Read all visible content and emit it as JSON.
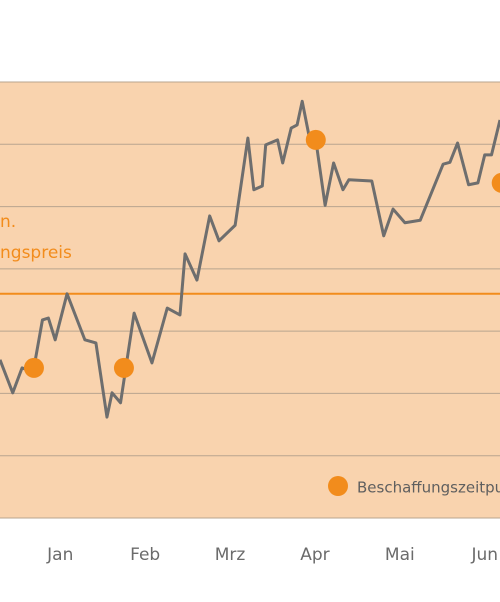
{
  "chart_data": {
    "type": "line",
    "xlim": [
      0.29,
      6.18
    ],
    "ylim": [
      0,
      7
    ],
    "xticks": [
      {
        "value": 1,
        "label": "Jan"
      },
      {
        "value": 2,
        "label": "Feb"
      },
      {
        "value": 3,
        "label": "Mrz"
      },
      {
        "value": 4,
        "label": "Apr"
      },
      {
        "value": 5,
        "label": "Mai"
      },
      {
        "value": 6,
        "label": "Jun"
      }
    ],
    "yticks": [
      0,
      1,
      2,
      3,
      4,
      5,
      6,
      7
    ],
    "grid": true,
    "background": "#f9d3ae",
    "x": [
      0.29,
      0.44,
      0.55,
      0.68,
      0.79,
      0.86,
      0.94,
      1.08,
      1.29,
      1.42,
      1.55,
      1.61,
      1.71,
      1.87,
      2.08,
      2.26,
      2.41,
      2.47,
      2.61,
      2.76,
      2.87,
      3.06,
      3.21,
      3.28,
      3.38,
      3.42,
      3.56,
      3.62,
      3.72,
      3.79,
      3.85,
      3.94,
      4.01,
      4.12,
      4.22,
      4.33,
      4.4,
      4.67,
      4.81,
      4.92,
      5.06,
      5.24,
      5.51,
      5.59,
      5.68,
      5.81,
      5.92,
      6.0,
      6.08,
      6.18
    ],
    "series": [
      {
        "color": "#6e6e6e",
        "values": [
          2.54,
          2.01,
          2.41,
          2.34,
          3.18,
          3.21,
          2.86,
          3.6,
          2.86,
          2.81,
          1.62,
          2.01,
          1.85,
          3.29,
          2.49,
          3.37,
          3.26,
          4.24,
          3.82,
          4.85,
          4.45,
          4.7,
          6.1,
          5.27,
          5.33,
          5.99,
          6.07,
          5.7,
          6.26,
          6.31,
          6.69,
          6.07,
          6.07,
          5.02,
          5.7,
          5.27,
          5.43,
          5.41,
          4.53,
          4.96,
          4.74,
          4.78,
          5.68,
          5.71,
          6.02,
          5.35,
          5.38,
          5.83,
          5.83,
          6.39
        ]
      }
    ],
    "points": {
      "name": "Beschaffungszeitpunkt",
      "color": "#f28c1c",
      "x": [
        0.69,
        1.75,
        4.01,
        6.2
      ],
      "values": [
        2.41,
        2.41,
        6.07,
        5.38
      ]
    },
    "reference_line": {
      "value": 3.6,
      "color": "#f28c1c",
      "label_lines": [
        "n.",
        "ngspreis"
      ]
    }
  }
}
